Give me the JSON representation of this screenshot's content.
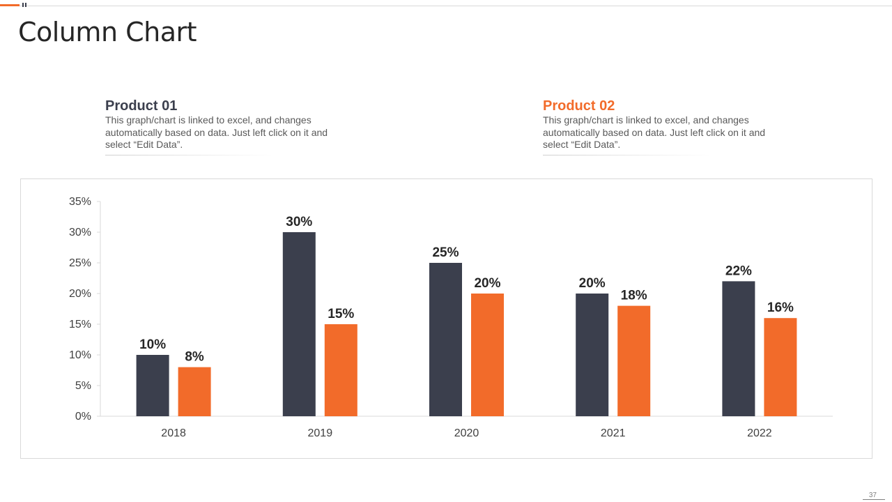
{
  "slide": {
    "title": "Column Chart",
    "page_number": "37"
  },
  "legend": [
    {
      "name": "Product 01",
      "description": "This graph/chart is linked to excel, and changes automatically based on data. Just left click on it and select “Edit Data”."
    },
    {
      "name": "Product 02",
      "description": "This graph/chart is linked to excel, and changes automatically based on data. Just left click on it and select “Edit Data”."
    }
  ],
  "colors": {
    "product_01": "#3b3f4d",
    "product_02": "#f26b2a",
    "axis": "#d9d9d9",
    "tick_text": "#404040",
    "label_text": "#262626"
  },
  "chart_data": {
    "type": "bar",
    "title": "",
    "xlabel": "",
    "ylabel": "",
    "categories": [
      "2018",
      "2019",
      "2020",
      "2021",
      "2022"
    ],
    "series": [
      {
        "name": "Product 01",
        "values": [
          10,
          30,
          25,
          20,
          22
        ],
        "labels": [
          "10%",
          "30%",
          "25%",
          "20%",
          "22%"
        ]
      },
      {
        "name": "Product 02",
        "values": [
          8,
          15,
          20,
          18,
          16
        ],
        "labels": [
          "8%",
          "15%",
          "20%",
          "18%",
          "16%"
        ]
      }
    ],
    "ylim": [
      0,
      35
    ],
    "yticks": [
      0,
      5,
      10,
      15,
      20,
      25,
      30,
      35
    ],
    "ytick_labels": [
      "0%",
      "5%",
      "10%",
      "15%",
      "20%",
      "25%",
      "30%",
      "35%"
    ],
    "grid": false,
    "legend": "top"
  }
}
